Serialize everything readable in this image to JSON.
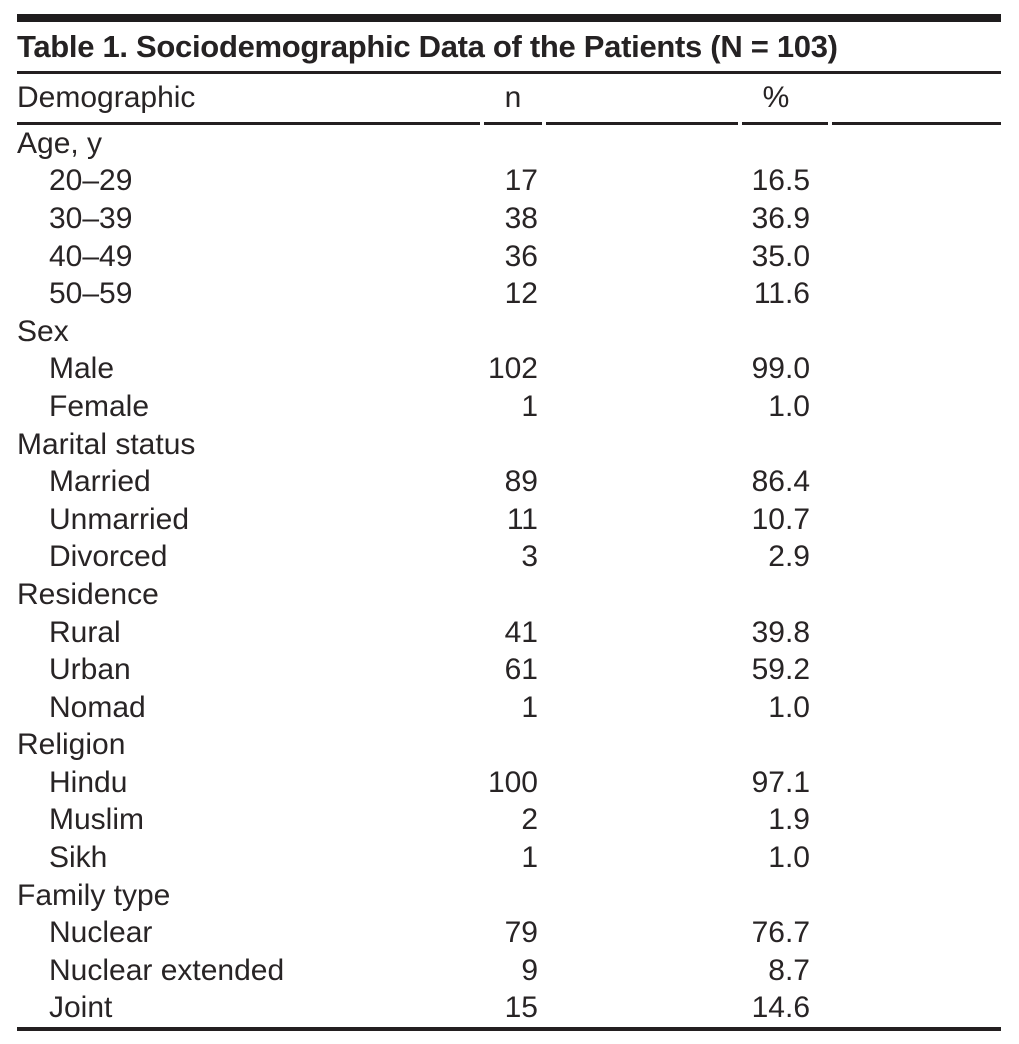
{
  "table": {
    "title": "Table 1. Sociodemographic Data of the Patients (N = 103)",
    "columns": {
      "demographic": "Demographic",
      "n": "n",
      "percent": "%"
    },
    "sections": [
      {
        "label": "Age, y",
        "rows": [
          {
            "label": "20–29",
            "n": "17",
            "percent": "16.5"
          },
          {
            "label": "30–39",
            "n": "38",
            "percent": "36.9"
          },
          {
            "label": "40–49",
            "n": "36",
            "percent": "35.0"
          },
          {
            "label": "50–59",
            "n": "12",
            "percent": "11.6"
          }
        ]
      },
      {
        "label": "Sex",
        "rows": [
          {
            "label": "Male",
            "n": "102",
            "percent": "99.0"
          },
          {
            "label": "Female",
            "n": "1",
            "percent": "1.0"
          }
        ]
      },
      {
        "label": "Marital status",
        "rows": [
          {
            "label": "Married",
            "n": "89",
            "percent": "86.4"
          },
          {
            "label": "Unmarried",
            "n": "11",
            "percent": "10.7"
          },
          {
            "label": "Divorced",
            "n": "3",
            "percent": "2.9"
          }
        ]
      },
      {
        "label": "Residence",
        "rows": [
          {
            "label": "Rural",
            "n": "41",
            "percent": "39.8"
          },
          {
            "label": "Urban",
            "n": "61",
            "percent": "59.2"
          },
          {
            "label": "Nomad",
            "n": "1",
            "percent": "1.0"
          }
        ]
      },
      {
        "label": "Religion",
        "rows": [
          {
            "label": "Hindu",
            "n": "100",
            "percent": "97.1"
          },
          {
            "label": "Muslim",
            "n": "2",
            "percent": "1.9"
          },
          {
            "label": "Sikh",
            "n": "1",
            "percent": "1.0"
          }
        ]
      },
      {
        "label": "Family type",
        "rows": [
          {
            "label": "Nuclear",
            "n": "79",
            "percent": "76.7"
          },
          {
            "label": "Nuclear extended",
            "n": "9",
            "percent": "8.7"
          },
          {
            "label": "Joint",
            "n": "15",
            "percent": "14.6"
          }
        ]
      }
    ],
    "colors": {
      "text": "#262324",
      "rule": "#231f20",
      "background": "#ffffff"
    }
  }
}
